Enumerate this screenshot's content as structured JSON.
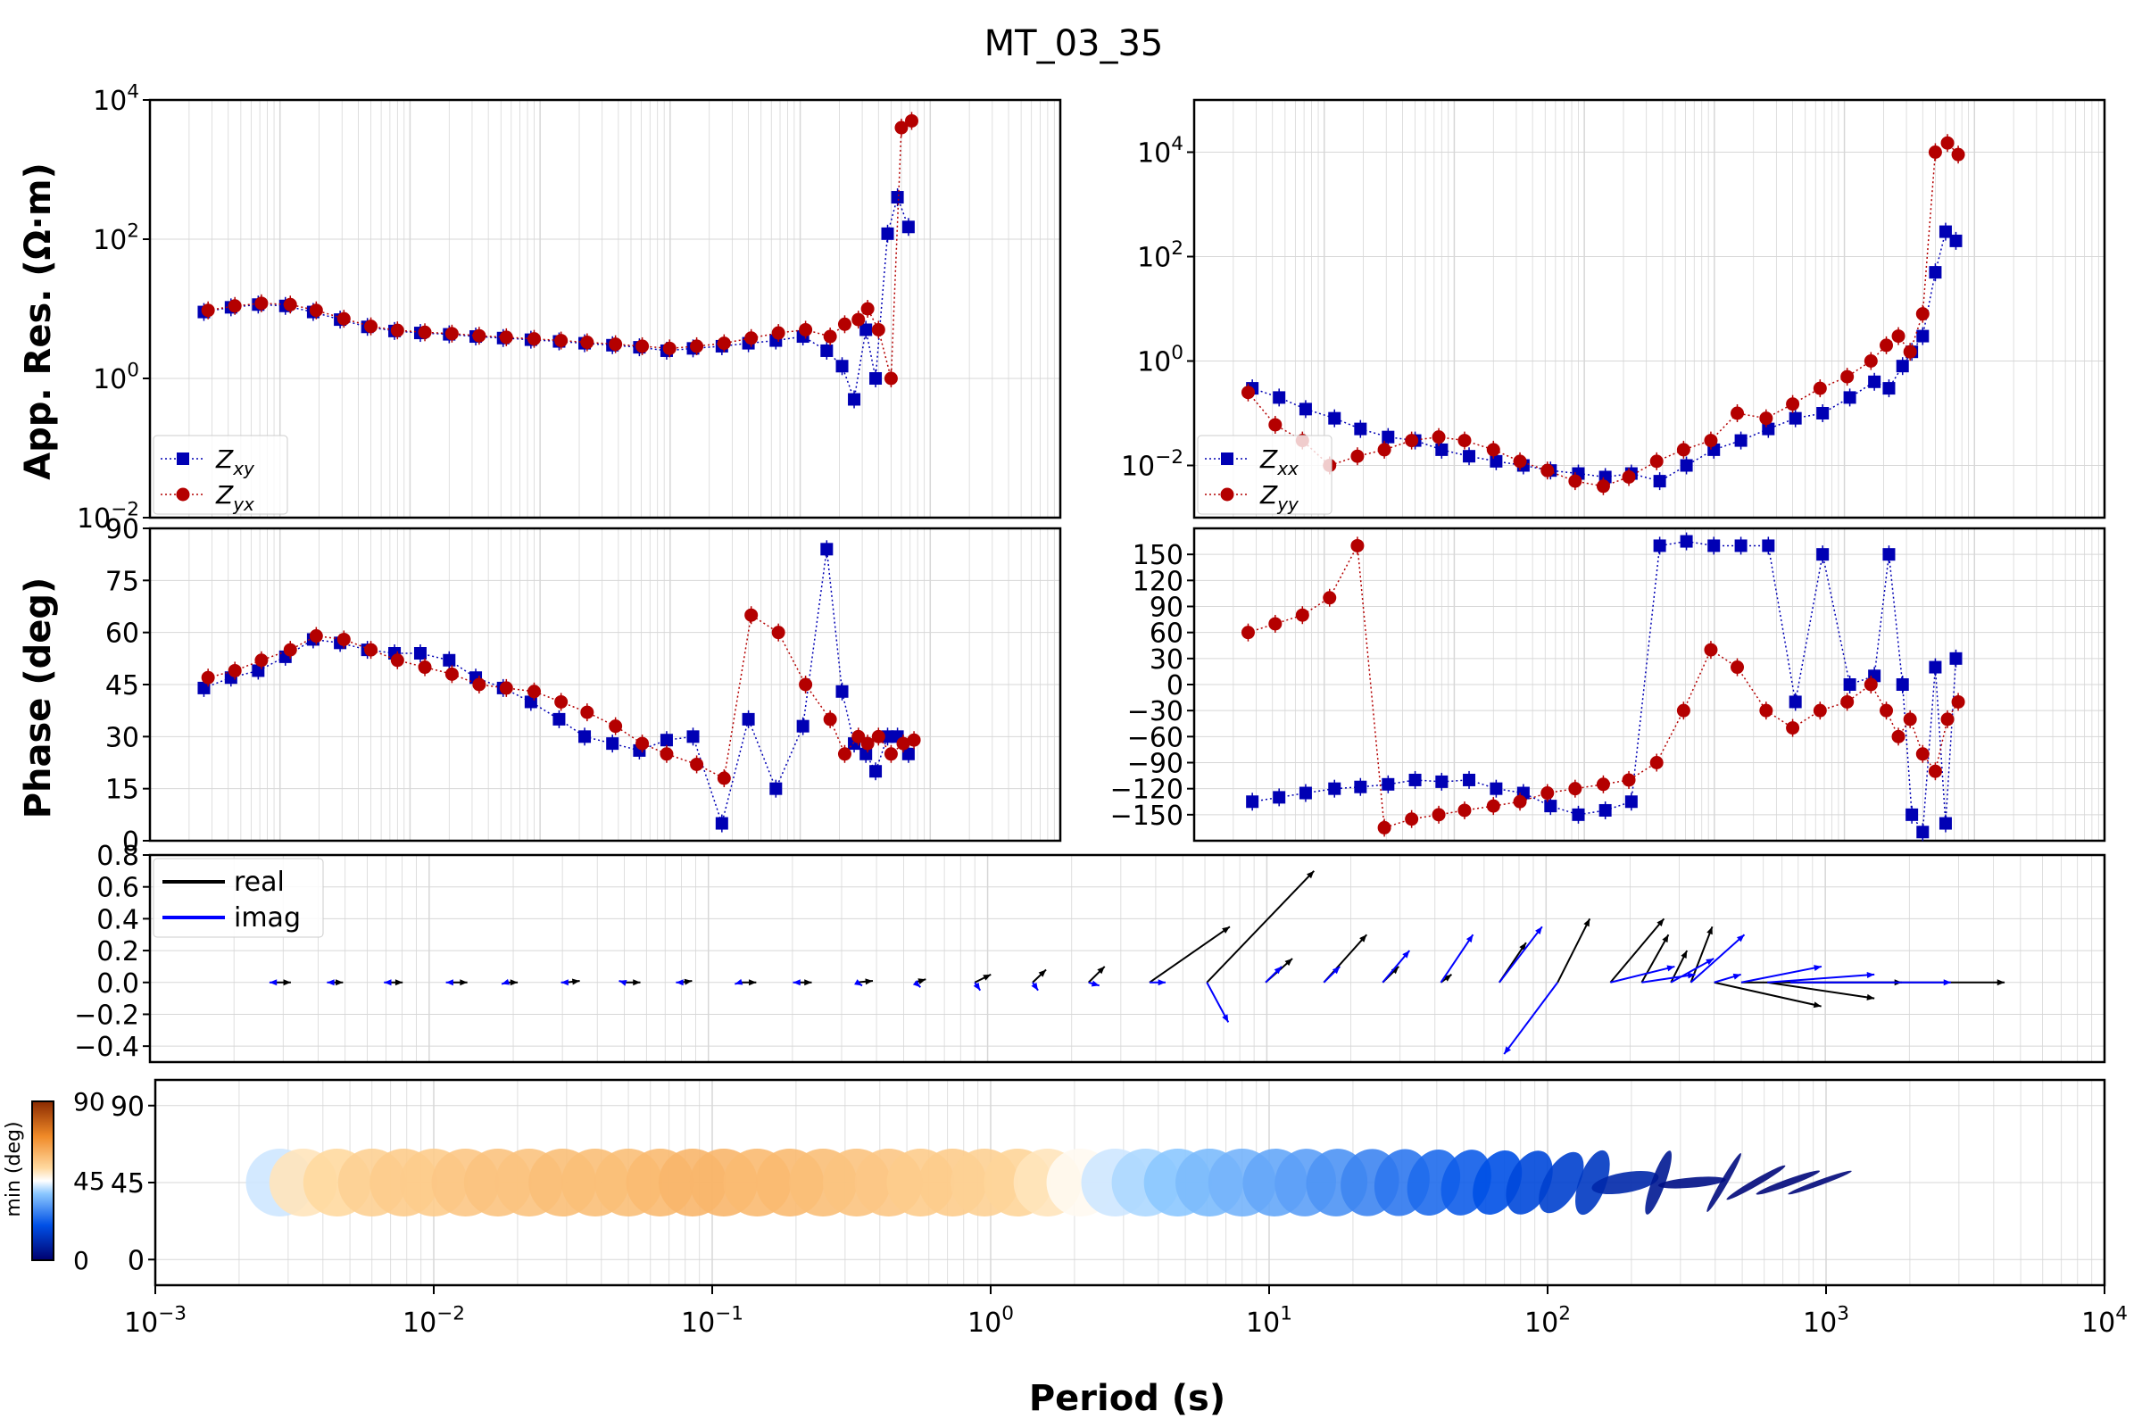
{
  "title": "MT_03_35",
  "colors": {
    "xy": "#0000b4",
    "yx": "#b40000",
    "xx": "#0000b4",
    "yy": "#b40000",
    "real_arrow": "#000000",
    "imag_arrow": "#0000ff",
    "grid": "#d7d7d7"
  },
  "chart_data": [
    {
      "id": "res-main",
      "type": "scatter",
      "ylabel": "App. Res. (Ω·m)",
      "xscale": "log",
      "yscale": "log",
      "xlim": [
        0.001,
        10000
      ],
      "ylim": [
        0.01,
        10000
      ],
      "yticks": [
        "10^-2",
        "10^0",
        "10^2",
        "10^4"
      ],
      "legend": {
        "placement": "lower-left",
        "entries": [
          "Z_xy",
          "Z_yx"
        ]
      },
      "series": [
        {
          "name": "Z_xy",
          "marker": "square",
          "x": [
            0.0026,
            0.0042,
            0.0068,
            0.011,
            0.018,
            0.029,
            0.047,
            0.076,
            0.12,
            0.2,
            0.32,
            0.52,
            0.85,
            1.4,
            2.2,
            3.6,
            5.8,
            9.4,
            15,
            25,
            40,
            65,
            105,
            160,
            210,
            260,
            320,
            380,
            470,
            560,
            680
          ],
          "y": [
            9.0,
            10.5,
            11.5,
            11.0,
            9.0,
            7.0,
            5.5,
            4.8,
            4.5,
            4.3,
            4.0,
            3.8,
            3.6,
            3.4,
            3.2,
            3.0,
            2.8,
            2.5,
            2.7,
            2.9,
            3.2,
            3.5,
            4.0,
            2.5,
            1.5,
            0.5,
            5.0,
            1.0,
            120,
            400,
            150
          ]
        },
        {
          "name": "Z_yx",
          "marker": "circle",
          "x": [
            0.0028,
            0.0045,
            0.0072,
            0.012,
            0.019,
            0.031,
            0.05,
            0.08,
            0.13,
            0.21,
            0.34,
            0.55,
            0.9,
            1.45,
            2.3,
            3.8,
            6.1,
            9.9,
            16,
            26,
            42,
            68,
            110,
            170,
            220,
            280,
            330,
            400,
            500,
            600,
            720
          ],
          "y": [
            9.5,
            11.0,
            12.0,
            11.5,
            9.5,
            7.2,
            5.6,
            4.9,
            4.6,
            4.4,
            4.1,
            3.9,
            3.7,
            3.5,
            3.3,
            3.1,
            2.9,
            2.7,
            2.9,
            3.2,
            3.8,
            4.5,
            5.0,
            4.0,
            6.0,
            7.0,
            10,
            5.0,
            1.0,
            4000,
            5000
          ]
        }
      ]
    },
    {
      "id": "res-diag",
      "type": "scatter",
      "xscale": "log",
      "yscale": "log",
      "xlim": [
        0.001,
        10000
      ],
      "ylim": [
        0.001,
        100000
      ],
      "yticks": [
        "10^-2",
        "10^0",
        "10^2",
        "10^4"
      ],
      "legend": {
        "placement": "lower-left",
        "entries": [
          "Z_xx",
          "Z_yy"
        ]
      },
      "series": [
        {
          "name": "Z_xx",
          "marker": "square",
          "x": [
            0.0028,
            0.0045,
            0.0072,
            0.012,
            0.019,
            0.031,
            0.05,
            0.08,
            0.13,
            0.21,
            0.34,
            0.55,
            0.9,
            1.45,
            2.3,
            3.8,
            6.1,
            9.9,
            16,
            26,
            42,
            68,
            110,
            170,
            220,
            280,
            330,
            400,
            500,
            600,
            720
          ],
          "y": [
            0.3,
            0.2,
            0.12,
            0.08,
            0.05,
            0.035,
            0.03,
            0.02,
            0.015,
            0.012,
            0.01,
            0.008,
            0.007,
            0.006,
            0.007,
            0.005,
            0.01,
            0.02,
            0.03,
            0.05,
            0.08,
            0.1,
            0.2,
            0.4,
            0.3,
            0.8,
            1.5,
            3,
            50,
            300,
            200
          ]
        },
        {
          "name": "Z_yy",
          "marker": "circle",
          "x": [
            0.0026,
            0.0042,
            0.0068,
            0.011,
            0.018,
            0.029,
            0.047,
            0.076,
            0.12,
            0.2,
            0.32,
            0.52,
            0.85,
            1.4,
            2.2,
            3.6,
            5.8,
            9.4,
            15,
            25,
            40,
            65,
            105,
            160,
            210,
            260,
            320,
            400,
            500,
            620,
            750
          ],
          "y": [
            0.25,
            0.06,
            0.03,
            0.01,
            0.015,
            0.02,
            0.03,
            0.035,
            0.03,
            0.02,
            0.012,
            0.008,
            0.005,
            0.004,
            0.006,
            0.012,
            0.02,
            0.03,
            0.1,
            0.08,
            0.15,
            0.3,
            0.5,
            1.0,
            2.0,
            3.0,
            1.5,
            8,
            10000,
            15000,
            9000
          ]
        }
      ]
    },
    {
      "id": "phase-main",
      "type": "scatter",
      "ylabel": "Phase (deg)",
      "xscale": "log",
      "xlim": [
        0.001,
        10000
      ],
      "ylim": [
        0,
        90
      ],
      "yticks": [
        "0",
        "15",
        "30",
        "45",
        "60",
        "75",
        "90"
      ],
      "series": [
        {
          "name": "Z_xy",
          "marker": "square",
          "x": [
            0.0026,
            0.0042,
            0.0068,
            0.011,
            0.018,
            0.029,
            0.047,
            0.076,
            0.12,
            0.2,
            0.32,
            0.52,
            0.85,
            1.4,
            2.2,
            3.6,
            5.8,
            9.4,
            15,
            25,
            40,
            65,
            105,
            160,
            210,
            260,
            320,
            380,
            470,
            560,
            680
          ],
          "y": [
            44,
            47,
            49,
            53,
            58,
            57,
            55,
            54,
            54,
            52,
            47,
            44,
            40,
            35,
            30,
            28,
            26,
            29,
            30,
            5,
            35,
            15,
            33,
            84,
            43,
            28,
            25,
            20,
            30,
            30,
            25
          ]
        },
        {
          "name": "Z_yx",
          "marker": "circle",
          "x": [
            0.0028,
            0.0045,
            0.0072,
            0.012,
            0.019,
            0.031,
            0.05,
            0.08,
            0.13,
            0.21,
            0.34,
            0.55,
            0.9,
            1.45,
            2.3,
            3.8,
            6.1,
            9.4,
            16,
            26,
            42,
            68,
            110,
            170,
            220,
            280,
            330,
            400,
            500,
            620,
            750
          ],
          "y": [
            47,
            49,
            52,
            55,
            59,
            58,
            55,
            52,
            50,
            48,
            45,
            44,
            43,
            40,
            37,
            33,
            28,
            25,
            22,
            18,
            65,
            60,
            45,
            35,
            25,
            30,
            28,
            30,
            25,
            28,
            29
          ]
        }
      ]
    },
    {
      "id": "phase-diag",
      "type": "scatter",
      "xscale": "log",
      "xlim": [
        0.001,
        10000
      ],
      "ylim": [
        -180,
        180
      ],
      "yticks": [
        "−150",
        "−120",
        "−90",
        "−60",
        "−30",
        "0",
        "30",
        "60",
        "90",
        "120",
        "150"
      ],
      "series": [
        {
          "name": "Z_xx",
          "marker": "square",
          "x": [
            0.0028,
            0.0045,
            0.0072,
            0.012,
            0.019,
            0.031,
            0.05,
            0.08,
            0.13,
            0.21,
            0.34,
            0.55,
            0.9,
            1.45,
            2.3,
            3.8,
            6.1,
            9.9,
            16,
            26,
            42,
            68,
            110,
            170,
            220,
            280,
            330,
            400,
            500,
            600,
            720
          ],
          "y": [
            -135,
            -130,
            -125,
            -120,
            -118,
            -115,
            -110,
            -112,
            -110,
            -120,
            -125,
            -140,
            -150,
            -145,
            -135,
            160,
            165,
            160,
            160,
            160,
            -20,
            150,
            0,
            10,
            150,
            0,
            -150,
            -170,
            20,
            -160,
            30
          ]
        },
        {
          "name": "Z_yy",
          "marker": "circle",
          "x": [
            0.0026,
            0.0042,
            0.0068,
            0.011,
            0.018,
            0.029,
            0.047,
            0.076,
            0.12,
            0.2,
            0.32,
            0.52,
            0.85,
            1.4,
            2.2,
            3.6,
            5.8,
            9.4,
            15,
            25,
            40,
            65,
            105,
            160,
            210,
            260,
            320,
            400,
            500,
            620,
            750
          ],
          "y": [
            60,
            70,
            80,
            100,
            160,
            -165,
            -155,
            -150,
            -145,
            -140,
            -135,
            -125,
            -120,
            -115,
            -110,
            -90,
            -30,
            40,
            20,
            -30,
            -50,
            -30,
            -20,
            0,
            -30,
            -60,
            -40,
            -80,
            -100,
            -40,
            -20
          ]
        }
      ]
    },
    {
      "id": "tipper",
      "type": "quiver",
      "xscale": "log",
      "xlim": [
        0.001,
        10000
      ],
      "ylim": [
        -0.5,
        0.8
      ],
      "yticks": [
        "−0.4",
        "−0.2",
        "0.0",
        "0.2",
        "0.4",
        "0.6",
        "0.8"
      ],
      "legend": {
        "placement": "upper-left",
        "entries": [
          "real",
          "imag"
        ]
      },
      "series": [
        {
          "name": "real",
          "x": [
            0.0028,
            0.0045,
            0.0072,
            0.012,
            0.019,
            0.031,
            0.05,
            0.08,
            0.13,
            0.21,
            0.34,
            0.55,
            0.9,
            1.45,
            2.3,
            3.8,
            6.1,
            9.9,
            16,
            26,
            42,
            68,
            110,
            170,
            220,
            280,
            330,
            400,
            500,
            620,
            750
          ],
          "dx": [
            0.3,
            0.2,
            0.25,
            0.3,
            0.2,
            0.25,
            0.3,
            0.2,
            0.3,
            0.25,
            0.3,
            0.2,
            0.3,
            0.25,
            0.3,
            1.5,
            2.0,
            0.5,
            0.8,
            0.3,
            0.2,
            0.5,
            0.6,
            1.0,
            0.5,
            0.3,
            0.4,
            2.0,
            3.0,
            2.0,
            4.0
          ],
          "dy": [
            0.0,
            0.0,
            0.0,
            0.0,
            0.0,
            0.01,
            0.0,
            0.01,
            0.0,
            0.0,
            0.01,
            0.02,
            0.05,
            0.08,
            0.1,
            0.35,
            0.7,
            0.15,
            0.3,
            0.1,
            0.05,
            0.25,
            0.4,
            0.4,
            0.3,
            0.2,
            0.35,
            -0.15,
            0.0,
            -0.1,
            0.0
          ]
        },
        {
          "name": "imag",
          "x": [
            0.0028,
            0.0045,
            0.0072,
            0.012,
            0.019,
            0.031,
            0.05,
            0.08,
            0.13,
            0.21,
            0.34,
            0.55,
            0.9,
            1.45,
            2.3,
            3.8,
            6.1,
            9.9,
            16,
            26,
            42,
            68,
            110,
            170,
            220,
            280,
            330,
            400,
            500,
            620,
            750
          ],
          "dx": [
            -0.1,
            -0.1,
            -0.1,
            -0.1,
            -0.1,
            -0.1,
            -0.1,
            -0.1,
            -0.1,
            -0.1,
            0.1,
            0.1,
            0.1,
            0.1,
            0.2,
            0.3,
            0.4,
            0.3,
            0.3,
            0.5,
            0.6,
            0.8,
            -1.0,
            1.2,
            1.0,
            0.8,
            1.0,
            0.5,
            1.5,
            2.0,
            3.0
          ],
          "dy": [
            0.0,
            0.0,
            0.0,
            0.0,
            -0.01,
            0.0,
            0.01,
            0.0,
            -0.01,
            0.0,
            -0.02,
            -0.03,
            -0.05,
            -0.05,
            -0.02,
            0.0,
            -0.25,
            0.1,
            0.1,
            0.2,
            0.3,
            0.35,
            -0.45,
            0.1,
            0.05,
            0.15,
            0.3,
            0.05,
            0.1,
            0.05,
            0.0
          ]
        }
      ]
    },
    {
      "id": "pt",
      "type": "ellipse",
      "xscale": "log",
      "xlabel": "Period (s)",
      "xlim": [
        0.001,
        10000
      ],
      "ylim": [
        -15,
        105
      ],
      "yticks": [
        "0",
        "45",
        "90"
      ],
      "xticks": [
        "10^-3",
        "10^-2",
        "10^-1",
        "10^0",
        "10^1",
        "10^2",
        "10^3",
        "10^4"
      ],
      "colorbar": {
        "label": "min (deg)",
        "ticks": [
          "0",
          "45",
          "90"
        ]
      },
      "x": [
        0.0028,
        0.0034,
        0.0045,
        0.006,
        0.0078,
        0.01,
        0.013,
        0.017,
        0.022,
        0.029,
        0.038,
        0.05,
        0.065,
        0.085,
        0.11,
        0.145,
        0.19,
        0.25,
        0.33,
        0.43,
        0.56,
        0.73,
        0.95,
        1.25,
        1.6,
        2.1,
        2.8,
        3.6,
        4.7,
        6.1,
        8.0,
        10.5,
        13.5,
        17.5,
        23,
        30,
        39,
        51,
        66,
        86,
        112,
        145,
        190,
        250,
        330,
        430,
        560,
        730,
        950
      ],
      "min_deg": [
        42,
        50,
        52,
        54,
        55,
        55,
        56,
        57,
        57,
        58,
        58,
        58,
        59,
        60,
        60,
        59,
        59,
        58,
        57,
        56,
        55,
        55,
        54,
        53,
        50,
        46,
        42,
        40,
        38,
        36,
        35,
        33,
        32,
        30,
        28,
        26,
        24,
        22,
        20,
        18,
        16,
        14,
        10,
        6,
        4,
        3,
        2,
        2,
        2
      ],
      "ellipticity": [
        0,
        0,
        0,
        0,
        0,
        0,
        0,
        0,
        0,
        0,
        0,
        0,
        0,
        0,
        0,
        0,
        0,
        0,
        0,
        0,
        0,
        0,
        0,
        0,
        0,
        0,
        0,
        0,
        0,
        0,
        0,
        0.05,
        0.1,
        0.1,
        0.15,
        0.2,
        0.25,
        0.3,
        0.35,
        0.4,
        0.5,
        0.6,
        0.7,
        0.8,
        0.85,
        0.9,
        0.9,
        0.9,
        0.92
      ],
      "azimuth": [
        0,
        0,
        0,
        0,
        0,
        0,
        0,
        0,
        0,
        0,
        0,
        0,
        0,
        0,
        0,
        0,
        0,
        0,
        0,
        0,
        0,
        0,
        0,
        0,
        0,
        0,
        0,
        0,
        0,
        0,
        0,
        10,
        10,
        10,
        15,
        15,
        20,
        20,
        25,
        25,
        30,
        20,
        80,
        20,
        85,
        30,
        60,
        70,
        70
      ]
    }
  ]
}
